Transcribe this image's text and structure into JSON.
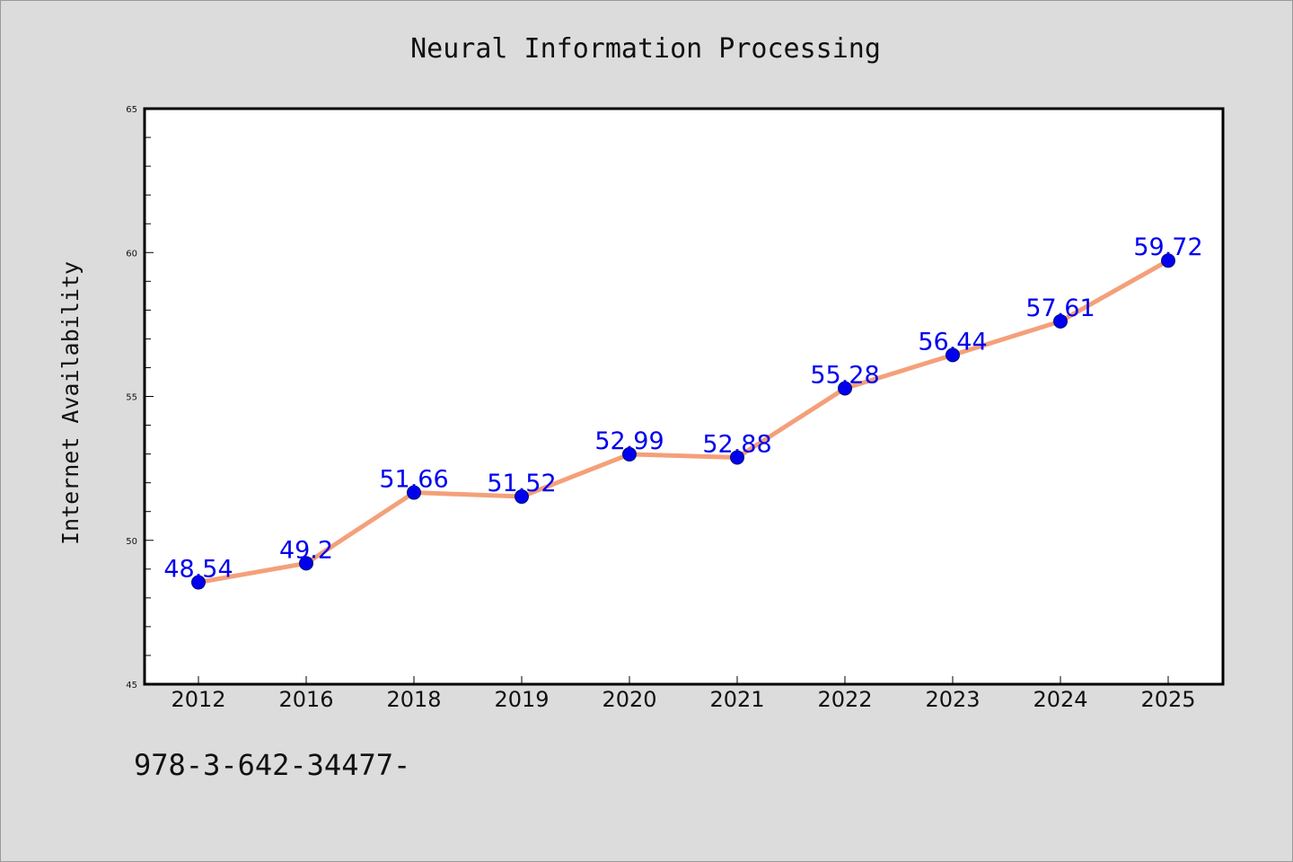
{
  "footer_text": "978-3-642-34477-",
  "colors": {
    "line": "#f4a07a",
    "point": "#0000ee",
    "label": "#0000ee",
    "plot_bg": "#ffffff",
    "page_bg": "#dcdcdc"
  },
  "chart_data": {
    "type": "line",
    "title": "Neural Information Processing",
    "xlabel": "",
    "ylabel": "Internet Availability",
    "categories": [
      "2012",
      "2016",
      "2018",
      "2019",
      "2020",
      "2021",
      "2022",
      "2023",
      "2024",
      "2025"
    ],
    "values": [
      48.54,
      49.2,
      51.66,
      51.52,
      52.99,
      52.88,
      55.28,
      56.44,
      57.61,
      59.72
    ],
    "data_labels": [
      "48.54",
      "49.2",
      "51.66",
      "51.52",
      "52.99",
      "52.88",
      "55.28",
      "56.44",
      "57.61",
      "59.72"
    ],
    "ylim": [
      45,
      65
    ],
    "yticks": [
      "45",
      "50",
      "55",
      "60",
      "65"
    ],
    "grid": false,
    "legend": "none"
  }
}
